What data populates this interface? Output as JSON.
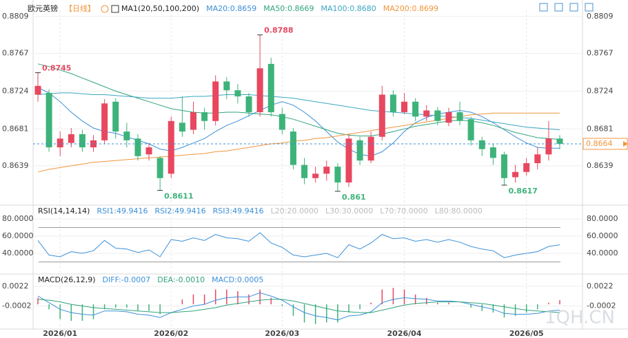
{
  "chart_data": [
    {
      "type": "candlestick",
      "title": "欧元英镑",
      "period": "【日线】",
      "indicator": "MA1(20,50,100,200)",
      "categories": [
        null,
        null,
        "2026/01",
        null,
        null,
        null,
        null,
        null,
        null,
        null,
        null,
        null,
        "2026/02",
        null,
        null,
        null,
        null,
        null,
        null,
        null,
        null,
        null,
        "2026/03",
        null,
        null,
        null,
        null,
        null,
        null,
        null,
        null,
        null,
        null,
        "2026/04",
        null,
        null,
        null,
        null,
        null,
        null,
        null,
        null,
        null,
        null,
        "2026/05",
        null,
        null,
        null
      ],
      "open": [
        0.872,
        0.8722,
        0.866,
        0.8665,
        0.8675,
        0.866,
        0.8668,
        0.8712,
        0.8678,
        0.867,
        0.8652,
        0.8648,
        0.863,
        0.8688,
        0.868,
        0.87,
        0.869,
        0.8735,
        0.8725,
        0.8718,
        0.87,
        0.8755,
        0.8698,
        0.8678,
        0.864,
        0.8625,
        0.863,
        0.8638,
        0.862,
        0.8668,
        0.8645,
        0.8672,
        0.872,
        0.87,
        0.8712,
        0.8695,
        0.8702,
        0.8688,
        0.87,
        0.8692,
        0.8668,
        0.866,
        0.8652,
        0.8626,
        0.8632,
        0.8642,
        0.8652,
        0.867
      ],
      "high": [
        0.8745,
        0.8726,
        0.8678,
        0.8682,
        0.868,
        0.8674,
        0.8715,
        0.8716,
        0.8688,
        0.8675,
        0.8665,
        0.865,
        0.8695,
        0.8718,
        0.8712,
        0.8705,
        0.8742,
        0.874,
        0.8732,
        0.8722,
        0.8788,
        0.8762,
        0.8705,
        0.8682,
        0.8648,
        0.8638,
        0.8645,
        0.8642,
        0.8675,
        0.8672,
        0.8678,
        0.873,
        0.8725,
        0.8722,
        0.8716,
        0.8708,
        0.8706,
        0.8705,
        0.8712,
        0.8695,
        0.8672,
        0.8664,
        0.8655,
        0.864,
        0.8648,
        0.866,
        0.869,
        0.8674
      ],
      "low": [
        0.8712,
        0.8655,
        0.865,
        0.866,
        0.8655,
        0.8655,
        0.8664,
        0.867,
        0.866,
        0.8645,
        0.8645,
        0.8611,
        0.8625,
        0.8672,
        0.8675,
        0.868,
        0.8685,
        0.8715,
        0.871,
        0.8695,
        0.8695,
        0.8695,
        0.8675,
        0.8635,
        0.8618,
        0.862,
        0.8622,
        0.861,
        0.8615,
        0.864,
        0.8642,
        0.8668,
        0.8695,
        0.8698,
        0.869,
        0.869,
        0.8685,
        0.8684,
        0.8685,
        0.8662,
        0.865,
        0.864,
        0.8617,
        0.862,
        0.8628,
        0.8635,
        0.8645,
        0.8658
      ],
      "close": [
        0.873,
        0.866,
        0.867,
        0.8675,
        0.866,
        0.8668,
        0.871,
        0.8678,
        0.8668,
        0.865,
        0.866,
        0.8625,
        0.869,
        0.8678,
        0.87,
        0.869,
        0.8735,
        0.8725,
        0.8718,
        0.87,
        0.875,
        0.87,
        0.868,
        0.864,
        0.8625,
        0.863,
        0.8638,
        0.862,
        0.867,
        0.8645,
        0.8672,
        0.872,
        0.87,
        0.8712,
        0.8695,
        0.8702,
        0.869,
        0.87,
        0.869,
        0.8668,
        0.8658,
        0.8648,
        0.8625,
        0.8632,
        0.8642,
        0.8652,
        0.867,
        0.8664
      ],
      "annotations": [
        0.8745,
        0.8788,
        0.8611,
        0.861,
        0.8617
      ],
      "series": [
        {
          "name": "MA20:0.8659",
          "color": "#3b8fd9",
          "values": [
            0.8728,
            0.8722,
            0.8712,
            0.87,
            0.869,
            0.8682,
            0.8678,
            0.8676,
            0.8672,
            0.8668,
            0.8664,
            0.8658,
            0.8656,
            0.866,
            0.8665,
            0.867,
            0.8678,
            0.8685,
            0.869,
            0.8696,
            0.8702,
            0.8708,
            0.8712,
            0.8708,
            0.87,
            0.869,
            0.8678,
            0.8666,
            0.8658,
            0.8652,
            0.865,
            0.8655,
            0.8665,
            0.8678,
            0.8688,
            0.8694,
            0.8698,
            0.87,
            0.8702,
            0.87,
            0.8695,
            0.8688,
            0.868,
            0.8672,
            0.8665,
            0.866,
            0.8659,
            0.8659
          ]
        },
        {
          "name": "MA50:0.8669",
          "color": "#2fa37c",
          "values": [
            0.8755,
            0.8752,
            0.8748,
            0.8744,
            0.8739,
            0.8734,
            0.8729,
            0.8724,
            0.872,
            0.8716,
            0.8712,
            0.8708,
            0.8704,
            0.8702,
            0.87,
            0.8699,
            0.8699,
            0.87,
            0.87,
            0.8699,
            0.8698,
            0.8697,
            0.8695,
            0.8692,
            0.8688,
            0.8684,
            0.868,
            0.8676,
            0.8674,
            0.8673,
            0.8673,
            0.8675,
            0.8678,
            0.8681,
            0.8684,
            0.8686,
            0.8688,
            0.869,
            0.8691,
            0.869,
            0.8688,
            0.8685,
            0.8681,
            0.8677,
            0.8674,
            0.8671,
            0.867,
            0.8669
          ]
        },
        {
          "name": "MA100:0.8680",
          "color": "#3aa6c2",
          "values": [
            0.872,
            0.8721,
            0.8722,
            0.8722,
            0.8721,
            0.872,
            0.872,
            0.8719,
            0.8718,
            0.8717,
            0.8716,
            0.8716,
            0.8716,
            0.8717,
            0.8718,
            0.8718,
            0.8719,
            0.872,
            0.872,
            0.872,
            0.8719,
            0.8718,
            0.8717,
            0.8716,
            0.8714,
            0.8712,
            0.871,
            0.8708,
            0.8706,
            0.8704,
            0.8702,
            0.8701,
            0.87,
            0.8699,
            0.8698,
            0.8697,
            0.8696,
            0.8695,
            0.8694,
            0.8693,
            0.8691,
            0.8689,
            0.8687,
            0.8685,
            0.8683,
            0.8682,
            0.8681,
            0.868
          ]
        },
        {
          "name": "MA200:0.8699",
          "color": "#f0953a",
          "values": [
            0.8632,
            0.8635,
            0.8637,
            0.8639,
            0.8641,
            0.8643,
            0.8644,
            0.8645,
            0.8646,
            0.8647,
            0.8648,
            0.8649,
            0.865,
            0.8651,
            0.8652,
            0.8653,
            0.8655,
            0.8656,
            0.8658,
            0.866,
            0.8662,
            0.8664,
            0.8665,
            0.8667,
            0.8668,
            0.867,
            0.8671,
            0.8673,
            0.8675,
            0.8677,
            0.8679,
            0.8681,
            0.8683,
            0.8685,
            0.8687,
            0.8689,
            0.8691,
            0.8693,
            0.8695,
            0.8697,
            0.8698,
            0.8699,
            0.8699,
            0.8699,
            0.8699,
            0.8699,
            0.8699,
            0.8699
          ]
        }
      ],
      "ylim": [
        0.8595,
        0.8816
      ],
      "yticks": [
        0.8639,
        0.8681,
        0.8724,
        0.8767,
        0.8809
      ],
      "up_color": "#e8475f",
      "down_color": "#3db37a",
      "grid": true
    },
    {
      "type": "line",
      "title": "RSI(14,14,14)",
      "series": [
        {
          "name": "RSI1:49.9416",
          "color": "#3b8fd9",
          "values": [
            55,
            38,
            36,
            42,
            40,
            43,
            55,
            46,
            45,
            41,
            44,
            36,
            56,
            54,
            58,
            55,
            62,
            58,
            57,
            54,
            64,
            52,
            47,
            38,
            36,
            38,
            40,
            35,
            50,
            45,
            52,
            62,
            57,
            58,
            54,
            56,
            53,
            56,
            53,
            48,
            45,
            43,
            35,
            38,
            40,
            42,
            48,
            49.9416
          ]
        }
      ],
      "legend": [
        "RSI2:49.9416",
        "RSI3:49.9416"
      ],
      "levels_legend": [
        "L20:20.0000",
        "L30:30.0000",
        "L70:70.0000",
        "L80:80.0000"
      ],
      "reference_lines": [
        30,
        70
      ],
      "ylim": [
        20,
        92.8
      ],
      "yticks": [
        {
          "value": 40,
          "label": "40.0000"
        },
        {
          "value": 60,
          "label": "60.0000"
        },
        {
          "value": 80,
          "label": "80.0000"
        }
      ]
    },
    {
      "type": "macd",
      "title": "MACD(26,12,9)",
      "series": [
        {
          "name": "DIFF:-0.0007",
          "color": "#3b8fd9",
          "values": [
            0.001,
            0.0002,
            -0.0006,
            -0.001,
            -0.0012,
            -0.0013,
            -0.0008,
            -0.0008,
            -0.0009,
            -0.0012,
            -0.0013,
            -0.0016,
            -0.001,
            -0.0006,
            -0.0002,
            0.0,
            0.0005,
            0.0008,
            0.0009,
            0.0009,
            0.0014,
            0.001,
            0.0005,
            -0.0003,
            -0.001,
            -0.0014,
            -0.0016,
            -0.0019,
            -0.0014,
            -0.0013,
            -0.0009,
            0.0002,
            0.0006,
            0.0008,
            0.0007,
            0.0006,
            0.0004,
            0.0004,
            0.0003,
            0.0,
            -0.0003,
            -0.0006,
            -0.0011,
            -0.0012,
            -0.0012,
            -0.0011,
            -0.0008,
            -0.0007
          ]
        },
        {
          "name": "DEA:-0.0010",
          "color": "#2fa37c",
          "values": [
            0.0006,
            0.0005,
            0.0003,
            0.0,
            -0.0002,
            -0.0004,
            -0.0005,
            -0.0006,
            -0.0007,
            -0.0008,
            -0.0009,
            -0.001,
            -0.001,
            -0.0009,
            -0.0008,
            -0.0006,
            -0.0004,
            -0.0001,
            0.0001,
            0.0003,
            0.0005,
            0.0006,
            0.0006,
            0.0004,
            0.0001,
            -0.0002,
            -0.0005,
            -0.0008,
            -0.0009,
            -0.001,
            -0.001,
            -0.0007,
            -0.0004,
            -0.0001,
            0.0001,
            0.0002,
            0.0003,
            0.0003,
            0.0003,
            0.0002,
            0.0001,
            -0.0001,
            -0.0003,
            -0.0005,
            -0.0007,
            -0.0008,
            -0.0009,
            -0.001
          ]
        },
        {
          "name": "MACD:0.0005",
          "color": "#3b8fd9",
          "style": "bar",
          "values": [
            0.0008,
            -0.0006,
            -0.0018,
            -0.002,
            -0.002,
            -0.0018,
            -0.0006,
            -0.0004,
            -0.0004,
            -0.0008,
            -0.0008,
            -0.0012,
            0,
            0.0006,
            0.0012,
            0.0012,
            0.0018,
            0.0018,
            0.0016,
            0.0012,
            0.0018,
            0.0008,
            -0.0002,
            -0.0014,
            -0.0022,
            -0.0024,
            -0.0022,
            -0.0022,
            -0.001,
            -0.0006,
            0.0002,
            0.0018,
            0.002,
            0.0018,
            0.0012,
            0.0008,
            0.0002,
            0.0002,
            0,
            -0.0004,
            -0.0008,
            -0.001,
            -0.0016,
            -0.0014,
            -0.001,
            -0.0006,
            0.0002,
            0.0005
          ]
        }
      ],
      "up_color": "#e8475f",
      "down_color": "#3db37a",
      "ylim": [
        -0.003,
        0.0031
      ],
      "yticks": [
        -0.0002,
        0.0022
      ]
    }
  ],
  "watermark": "1QH.CN"
}
